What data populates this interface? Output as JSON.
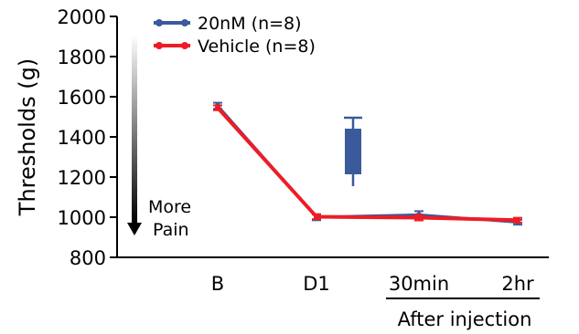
{
  "chart_data": {
    "type": "line",
    "ylabel": "Thresholds (g)",
    "ylim": [
      800,
      2000
    ],
    "yticks": [
      800,
      1000,
      1200,
      1400,
      1600,
      1800,
      2000
    ],
    "categories": [
      "B",
      "D1",
      "30min",
      "2hr"
    ],
    "bracket_label": "After injection",
    "series": [
      {
        "name": "20nM (n=8)",
        "color": "#3a5a9c",
        "values": [
          1555,
          1000,
          1012,
          975
        ],
        "err": [
          15,
          15,
          18,
          12
        ]
      },
      {
        "name": "Vehicle (n=8)",
        "color": "#ee1c24",
        "values": [
          1545,
          1002,
          998,
          985
        ],
        "err": [
          12,
          12,
          14,
          12
        ]
      }
    ],
    "arrow_label": [
      "More",
      "Pain"
    ],
    "syringe_color": "#3a5a9c"
  }
}
